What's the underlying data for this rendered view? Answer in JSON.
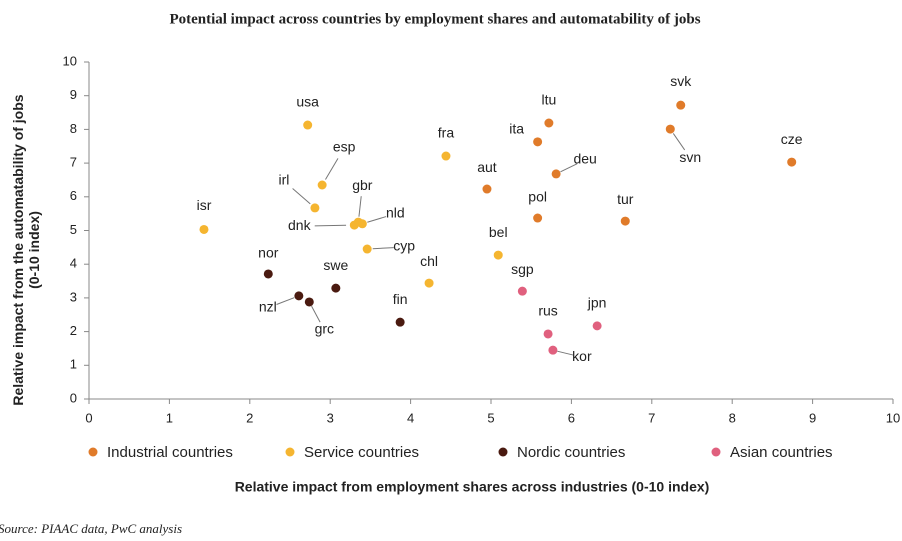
{
  "chart_data": {
    "type": "scatter",
    "title": "Potential impact across countries by employment shares and automatability of jobs",
    "xlabel": "Relative impact from employment shares across industries (0-10 index)",
    "ylabel": "Relative impact from the automatability of jobs (0-10 index)",
    "source": "Source: PIAAC data, PwC analysis",
    "xlim": [
      0,
      10
    ],
    "ylim": [
      0,
      10
    ],
    "xticks": [
      0,
      1,
      2,
      3,
      4,
      5,
      6,
      7,
      8,
      9,
      10
    ],
    "yticks": [
      0,
      1,
      2,
      3,
      4,
      5,
      6,
      7,
      8,
      9,
      10
    ],
    "series": [
      {
        "name": "Industrial countries",
        "color": "#e07b2a",
        "labels": [
          "svk",
          "svn",
          "cze",
          "ltu",
          "ita",
          "deu",
          "aut",
          "pol",
          "tur"
        ],
        "x": [
          7.36,
          7.23,
          8.74,
          5.72,
          5.58,
          5.81,
          4.95,
          5.58,
          6.67
        ],
        "values": [
          8.72,
          8.01,
          7.03,
          8.19,
          7.63,
          6.68,
          6.23,
          5.37,
          5.28
        ]
      },
      {
        "name": "Service countries",
        "color": "#f5b530",
        "labels": [
          "usa",
          "esp",
          "irl",
          "isr",
          "dnk",
          "gbr",
          "nld",
          "cyp",
          "fra",
          "bel",
          "chl"
        ],
        "x": [
          2.72,
          2.9,
          2.81,
          1.43,
          3.3,
          3.35,
          3.4,
          3.46,
          4.44,
          5.09,
          4.23
        ],
        "values": [
          8.13,
          6.35,
          5.67,
          5.03,
          5.16,
          5.25,
          5.2,
          4.45,
          7.21,
          4.27,
          3.44
        ]
      },
      {
        "name": "Nordic countries",
        "color": "#4a1a10",
        "labels": [
          "nor",
          "nzl",
          "grc",
          "swe",
          "fin"
        ],
        "x": [
          2.23,
          2.61,
          2.74,
          3.07,
          3.87
        ],
        "values": [
          3.71,
          3.06,
          2.88,
          3.29,
          2.28
        ]
      },
      {
        "name": "Asian countries",
        "color": "#e0607e",
        "labels": [
          "sgp",
          "rus",
          "kor",
          "jpn"
        ],
        "x": [
          5.39,
          5.71,
          5.77,
          6.32
        ],
        "values": [
          3.2,
          1.93,
          1.45,
          2.17
        ]
      }
    ]
  }
}
